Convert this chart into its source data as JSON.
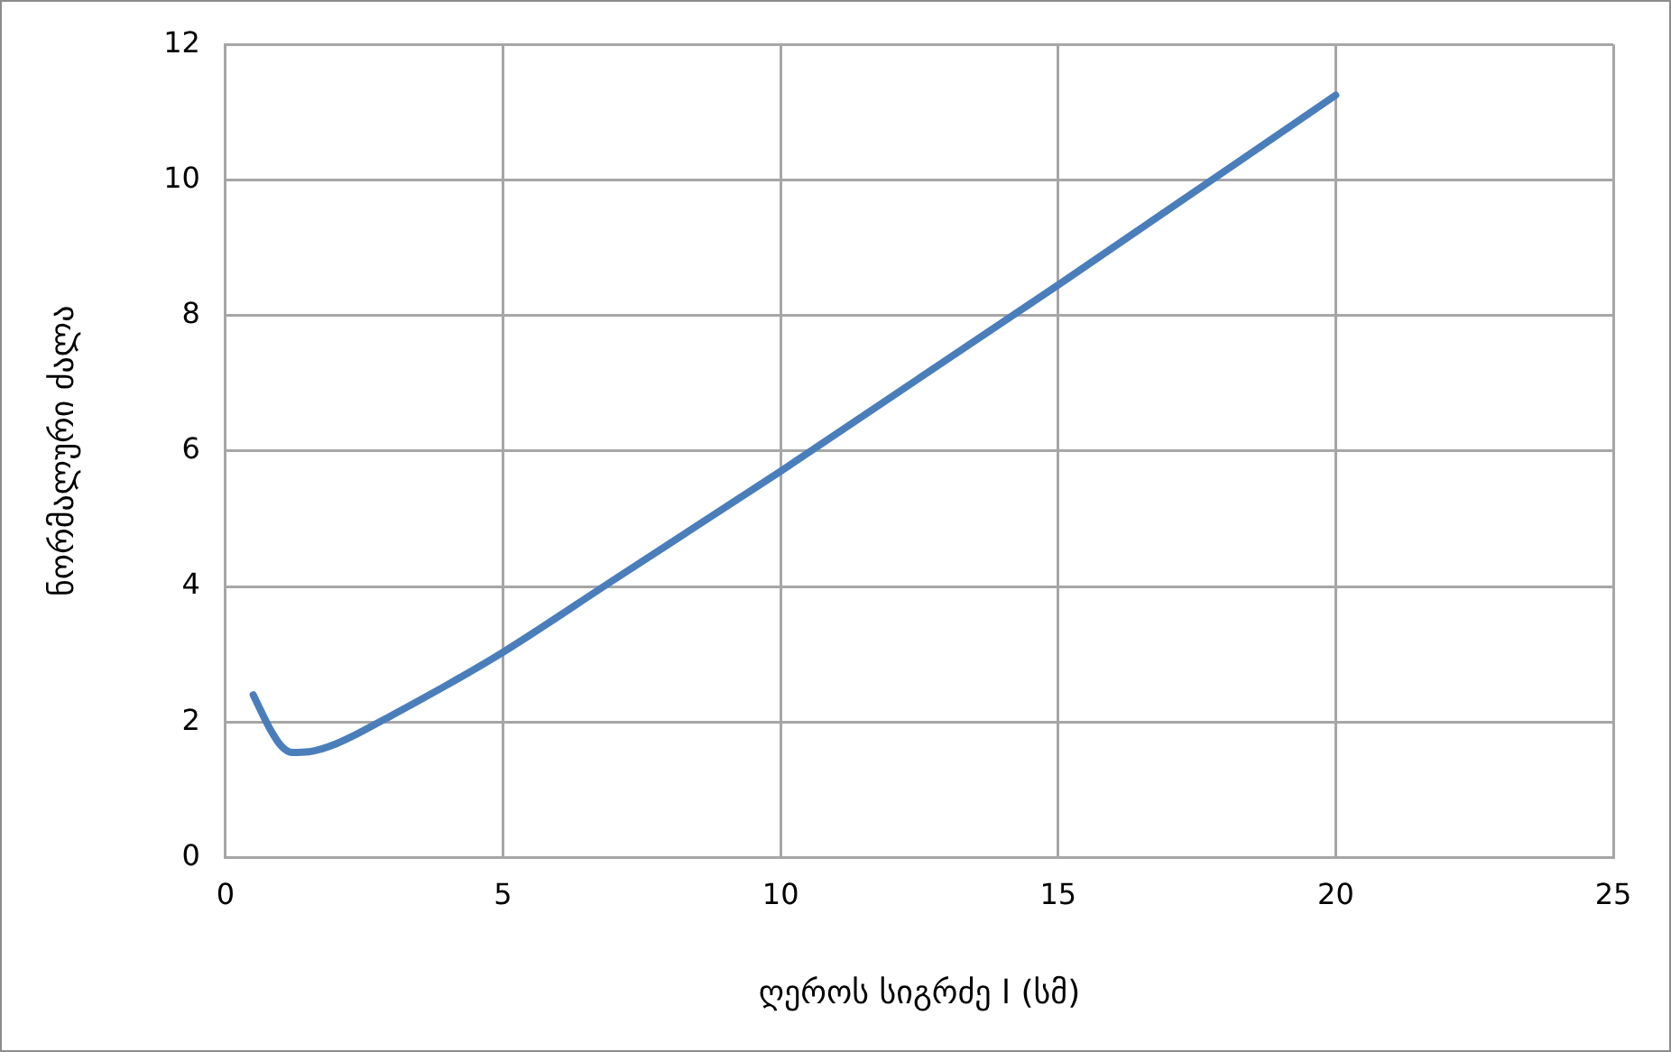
{
  "chart_data": {
    "type": "line",
    "xlabel": "ღეროს სიგრძე l (სმ)",
    "ylabel": "ნორმალური ძალა",
    "series": [
      {
        "color": "#4a7ebb",
        "x": [
          0.5,
          0.8,
          1,
          1.2,
          1.5,
          2,
          3,
          4,
          5,
          7,
          10,
          15,
          20
        ],
        "values": [
          2.4,
          1.9,
          1.65,
          1.55,
          1.56,
          1.68,
          2.1,
          2.55,
          3.03,
          4.1,
          5.7,
          8.45,
          11.25
        ]
      }
    ],
    "xlim": [
      0,
      25
    ],
    "xticks": [
      0,
      5,
      10,
      15,
      20,
      25
    ],
    "ylim": [
      0,
      12
    ],
    "yticks": [
      0,
      2,
      4,
      6,
      8,
      10,
      12
    ],
    "grid": true,
    "legend": false,
    "marker": "none",
    "line_style": "solid"
  }
}
